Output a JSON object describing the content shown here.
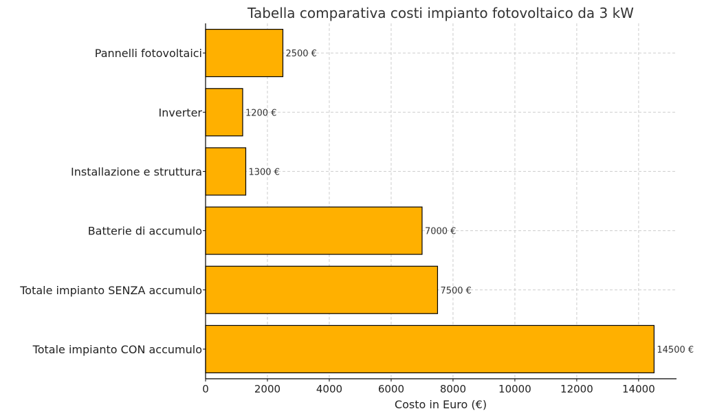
{
  "chart_data": {
    "type": "bar",
    "orientation": "horizontal",
    "title": "Tabella comparativa costi impianto fotovoltaico da 3 kW",
    "xlabel": "Costo in Euro (€)",
    "ylabel": "",
    "categories": [
      "Pannelli fotovoltaici",
      "Inverter",
      "Installazione e struttura",
      "Batterie di accumulo",
      "Totale impianto SENZA accumulo",
      "Totale impianto CON accumulo"
    ],
    "values": [
      2500,
      1200,
      1300,
      7000,
      7500,
      14500
    ],
    "data_labels": [
      "2500 €",
      "1200 €",
      "1300 €",
      "7000 €",
      "7500 €",
      "14500 €"
    ],
    "xlim": [
      0,
      15225
    ],
    "xticks": [
      0,
      2000,
      4000,
      6000,
      8000,
      10000,
      12000,
      14000
    ],
    "xtick_labels": [
      "0",
      "2000",
      "4000",
      "6000",
      "8000",
      "10000",
      "12000",
      "14000"
    ],
    "grid": true,
    "bar_color": "#FFB000",
    "bar_edge_color": "#000000",
    "text_color": "#333333",
    "grid_color": "#cccccc"
  }
}
